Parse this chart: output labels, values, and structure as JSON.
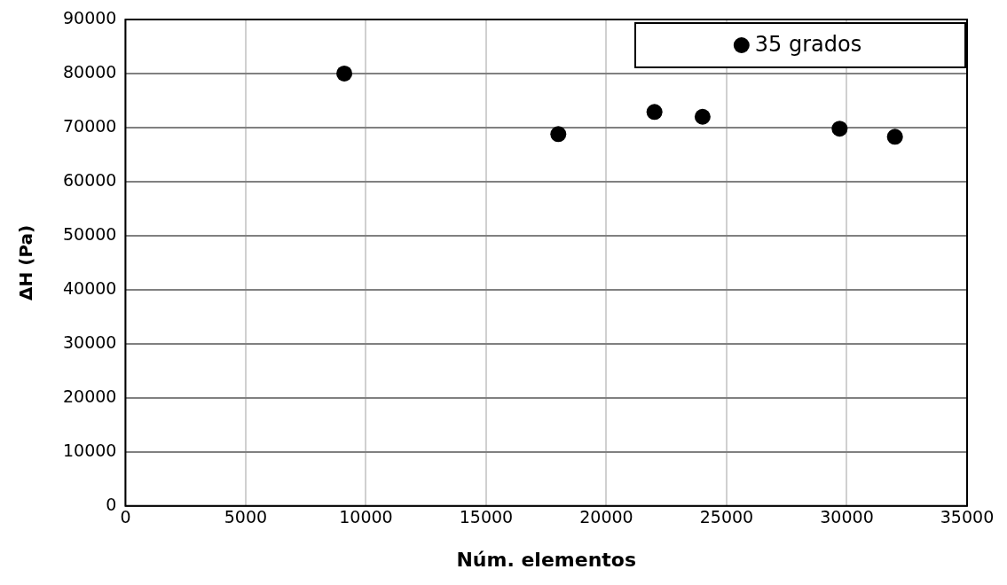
{
  "chart_data": {
    "type": "scatter",
    "xlabel": "Núm. elementos",
    "ylabel": "ΔH (Pa)",
    "x": [
      9100,
      18000,
      22000,
      24000,
      29700,
      32000
    ],
    "series": [
      {
        "name": "35 grados",
        "color": "#000000",
        "values": [
          80000,
          68800,
          72900,
          72000,
          69800,
          68300
        ]
      }
    ],
    "xlim": [
      0,
      35000
    ],
    "xticks": [
      0,
      5000,
      10000,
      15000,
      20000,
      25000,
      30000,
      35000
    ],
    "ylim": [
      0,
      90000
    ],
    "yticks": [
      0,
      10000,
      20000,
      30000,
      40000,
      50000,
      60000,
      70000,
      80000,
      90000
    ],
    "grid": true,
    "legend": "top right",
    "marker": "circle"
  }
}
